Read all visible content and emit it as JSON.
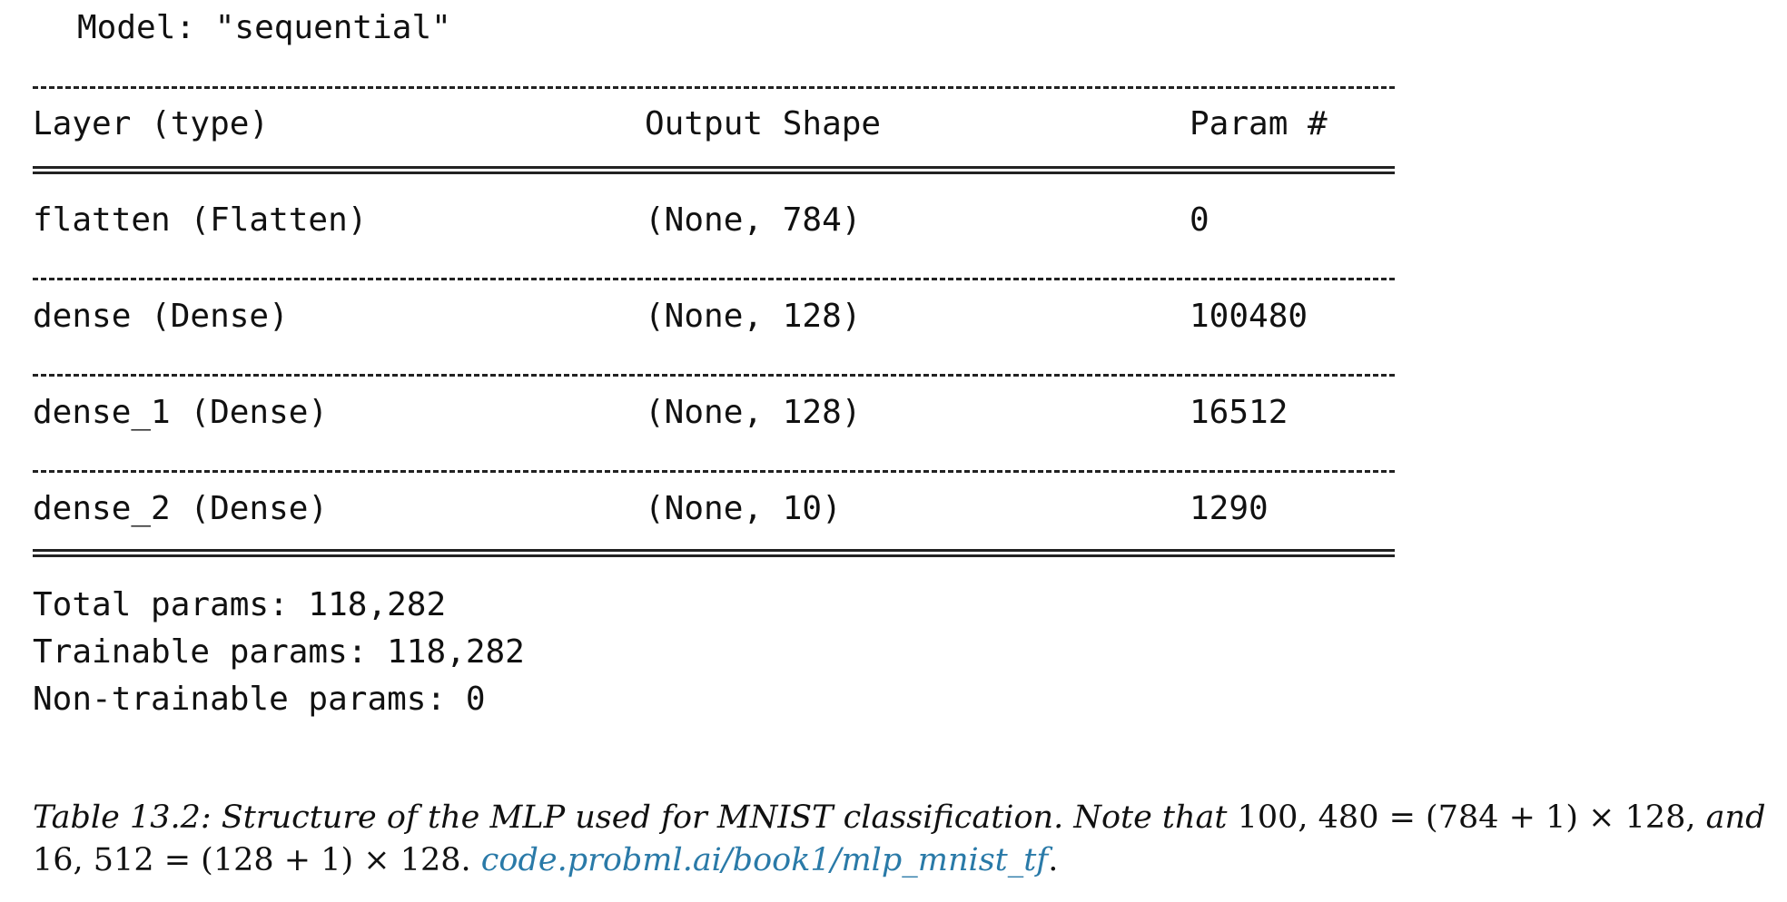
{
  "model_title": "Model: \"sequential\"",
  "table": {
    "headers": [
      "Layer (type)",
      "Output Shape",
      "Param #"
    ],
    "rows": [
      {
        "layer": "flatten (Flatten)",
        "shape": "(None, 784)",
        "params": "0"
      },
      {
        "layer": "dense (Dense)",
        "shape": "(None, 128)",
        "params": "100480"
      },
      {
        "layer": "dense_1 (Dense)",
        "shape": "(None, 128)",
        "params": "16512"
      },
      {
        "layer": "dense_2 (Dense)",
        "shape": "(None, 10)",
        "params": "1290"
      }
    ]
  },
  "summary": {
    "total": "Total params: 118,282",
    "trainable": "Trainable params: 118,282",
    "non_trainable": "Non-trainable params: 0"
  },
  "caption": {
    "label": "Table 13.2:",
    "text_part1": "Structure of the MLP used for MNIST classification. Note that",
    "eq1": "100, 480 = (784 + 1) × 128,",
    "and": "and",
    "eq2": "16, 512 = (128 + 1) × 128.",
    "link": "code.probml.ai/book1/mlp_mnist_tf",
    "end": "."
  }
}
